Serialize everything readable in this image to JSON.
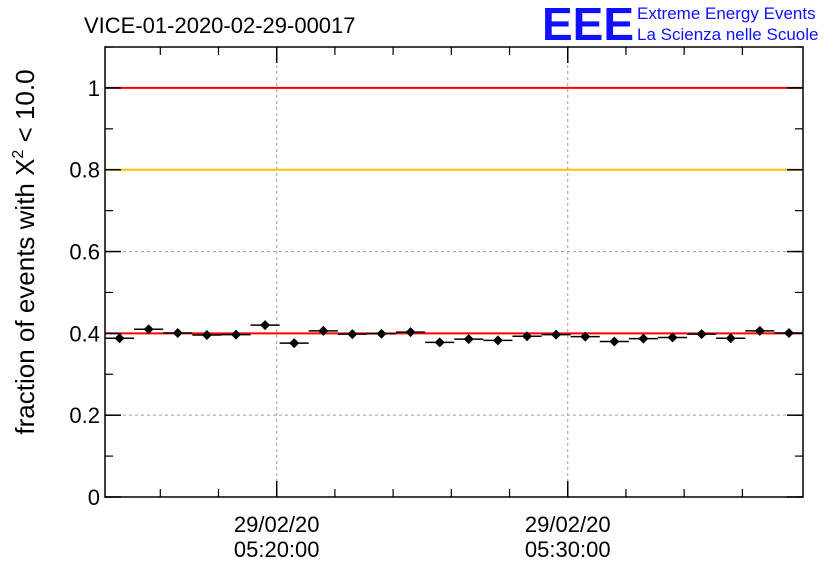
{
  "chart_data": {
    "type": "scatter",
    "title": "VICE-01-2020-02-29-00017",
    "logo": {
      "mark": "EEE",
      "line1": "Extreme Energy Events",
      "line2": "La Scienza nelle Scuole"
    },
    "ylabel_prefix": "fraction of events with ",
    "ylabel_symbol": "X",
    "ylabel_superscript": "2",
    "ylabel_suffix": " < 10.0",
    "ylim": [
      0,
      1.1
    ],
    "y_ticks": [
      0,
      0.2,
      0.4,
      0.6,
      0.8,
      1
    ],
    "y_tick_labels": [
      "0",
      "0.2",
      "0.4",
      "0.6",
      "0.8",
      "1"
    ],
    "xlim": [
      "05:14:06",
      "05:38:05"
    ],
    "x_ticks": [
      "05:20:00",
      "05:30:00"
    ],
    "x_tick_labels": [
      {
        "date": "29/02/20",
        "time": "05:20:00"
      },
      {
        "date": "29/02/20",
        "time": "05:30:00"
      }
    ],
    "x_minor_ticks": [
      "05:16:00",
      "05:18:00",
      "05:22:00",
      "05:24:00",
      "05:26:00",
      "05:28:00",
      "05:32:00",
      "05:34:00",
      "05:36:00"
    ],
    "grid": true,
    "reference_lines": [
      {
        "y": 1.0,
        "color": "#ff0000"
      },
      {
        "y": 0.8,
        "color": "#ffc000"
      },
      {
        "y": 0.4,
        "color": "#ff0000"
      }
    ],
    "series": [
      {
        "marker": "diamond",
        "color": "#000000",
        "bin_width_s": 60,
        "x": [
          "05:14:36",
          "05:15:36",
          "05:16:36",
          "05:17:36",
          "05:18:36",
          "05:19:36",
          "05:20:36",
          "05:21:36",
          "05:22:36",
          "05:23:36",
          "05:24:36",
          "05:25:36",
          "05:26:36",
          "05:27:36",
          "05:28:36",
          "05:29:36",
          "05:30:36",
          "05:31:36",
          "05:32:36",
          "05:33:36",
          "05:34:36",
          "05:35:36",
          "05:36:36",
          "05:37:36"
        ],
        "y": [
          0.388,
          0.41,
          0.401,
          0.396,
          0.397,
          0.42,
          0.376,
          0.406,
          0.398,
          0.399,
          0.403,
          0.378,
          0.386,
          0.383,
          0.393,
          0.397,
          0.392,
          0.38,
          0.387,
          0.39,
          0.398,
          0.388,
          0.406,
          0.401
        ]
      }
    ]
  }
}
